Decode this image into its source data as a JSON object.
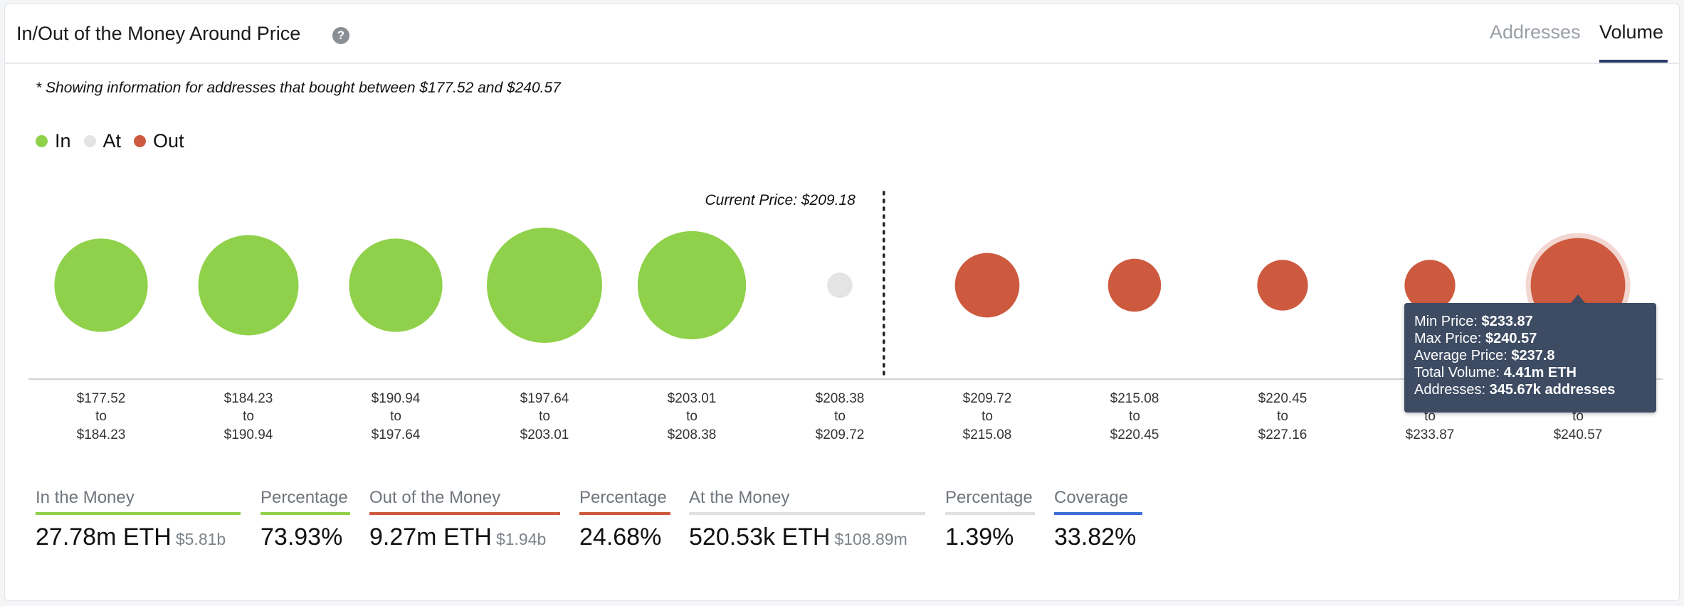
{
  "header": {
    "title": "In/Out of the Money Around Price",
    "tabs": [
      {
        "label": "Addresses",
        "active": false
      },
      {
        "label": "Volume",
        "active": true
      }
    ]
  },
  "note": "* Showing information for addresses that bought between $177.52 and $240.57",
  "legend": [
    {
      "label": "In",
      "color": "#8fd14a"
    },
    {
      "label": "At",
      "color": "#e4e4e4"
    },
    {
      "label": "Out",
      "color": "#cd5a3f"
    }
  ],
  "chart_data": {
    "type": "bubble",
    "current_price_label": "Current Price: $209.18",
    "current_price": 209.18,
    "colors": {
      "In": "#8fd14a",
      "At": "#e4e4e4",
      "Out": "#cd5a3f"
    },
    "buckets": [
      {
        "from": "$177.52",
        "to": "$184.23",
        "status": "In",
        "relative_size": 0.81
      },
      {
        "from": "$184.23",
        "to": "$190.94",
        "status": "In",
        "relative_size": 0.87
      },
      {
        "from": "$190.94",
        "to": "$197.64",
        "status": "In",
        "relative_size": 0.81
      },
      {
        "from": "$197.64",
        "to": "$203.01",
        "status": "In",
        "relative_size": 1.0
      },
      {
        "from": "$203.01",
        "to": "$208.38",
        "status": "In",
        "relative_size": 0.94
      },
      {
        "from": "$208.38",
        "to": "$209.72",
        "status": "At",
        "relative_size": 0.22
      },
      {
        "from": "$209.72",
        "to": "$215.08",
        "status": "Out",
        "relative_size": 0.56
      },
      {
        "from": "$215.08",
        "to": "$220.45",
        "status": "Out",
        "relative_size": 0.46
      },
      {
        "from": "$220.45",
        "to": "$227.16",
        "status": "Out",
        "relative_size": 0.44
      },
      {
        "from": "$227.16",
        "to": "$233.87",
        "status": "Out",
        "relative_size": 0.44
      },
      {
        "from": "$233.87",
        "to": "$240.57",
        "status": "Out",
        "relative_size": 0.82,
        "highlighted": true
      }
    ],
    "tick_connector": "to"
  },
  "tooltip": {
    "min_price_label": "Min Price:",
    "min_price": "$233.87",
    "max_price_label": "Max Price:",
    "max_price": "$240.57",
    "avg_price_label": "Average Price:",
    "avg_price": "$237.8",
    "total_volume_label": "Total Volume:",
    "total_volume": "4.41m ETH",
    "addresses_label": "Addresses:",
    "addresses": "345.67k addresses"
  },
  "stats": {
    "in_money": {
      "label": "In the Money",
      "value": "27.78m ETH",
      "sub": "$5.81b",
      "color": "#8fd14a"
    },
    "in_pct": {
      "label": "Percentage",
      "value": "73.93%",
      "color": "#8fd14a"
    },
    "out_money": {
      "label": "Out of the Money",
      "value": "9.27m ETH",
      "sub": "$1.94b",
      "color": "#cd5a3f"
    },
    "out_pct": {
      "label": "Percentage",
      "value": "24.68%",
      "color": "#cd5a3f"
    },
    "at_money": {
      "label": "At the Money",
      "value": "520.53k ETH",
      "sub": "$108.89m",
      "color": "#e0e0e0"
    },
    "at_pct": {
      "label": "Percentage",
      "value": "1.39%",
      "color": "#e0e0e0"
    },
    "coverage": {
      "label": "Coverage",
      "value": "33.82%",
      "color": "#3b6fd8"
    }
  }
}
